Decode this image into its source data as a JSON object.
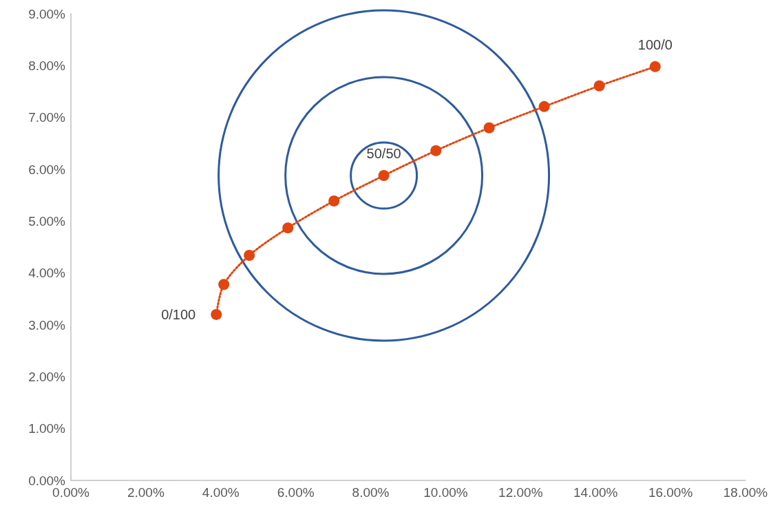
{
  "chart_data": {
    "type": "line",
    "x": [
      3.88,
      4.08,
      4.76,
      5.79,
      7.02,
      8.35,
      9.74,
      11.16,
      12.63,
      14.1,
      15.59
    ],
    "values": [
      3.2,
      3.78,
      4.34,
      4.87,
      5.39,
      5.88,
      6.36,
      6.8,
      7.21,
      7.61,
      7.98
    ],
    "color": "#e2450f",
    "marker": "circle",
    "line_style": "dotted",
    "grid": false,
    "value_labels": [
      "0/100",
      null,
      null,
      null,
      null,
      "50/50",
      null,
      null,
      null,
      null,
      "100/0"
    ],
    "xlim": [
      0,
      18
    ],
    "xticks": [
      {
        "value": 0,
        "label": "0.00%"
      },
      {
        "value": 2,
        "label": "2.00%"
      },
      {
        "value": 4,
        "label": "4.00%"
      },
      {
        "value": 6,
        "label": "6.00%"
      },
      {
        "value": 8,
        "label": "8.00%"
      },
      {
        "value": 10,
        "label": "10.00%"
      },
      {
        "value": 12,
        "label": "12.00%"
      },
      {
        "value": 14,
        "label": "14.00%"
      },
      {
        "value": 16,
        "label": "16.00%"
      },
      {
        "value": 18,
        "label": "18.00%"
      }
    ],
    "ylim": [
      0,
      9
    ],
    "yticks": [
      {
        "value": 0,
        "label": "0.00%"
      },
      {
        "value": 1,
        "label": "1.00%"
      },
      {
        "value": 2,
        "label": "2.00%"
      },
      {
        "value": 3,
        "label": "3.00%"
      },
      {
        "value": 4,
        "label": "4.00%"
      },
      {
        "value": 5,
        "label": "5.00%"
      },
      {
        "value": 6,
        "label": "6.00%"
      },
      {
        "value": 7,
        "label": "7.00%"
      },
      {
        "value": 8,
        "label": "8.00%"
      },
      {
        "value": 9,
        "label": "9.00%"
      }
    ]
  }
}
